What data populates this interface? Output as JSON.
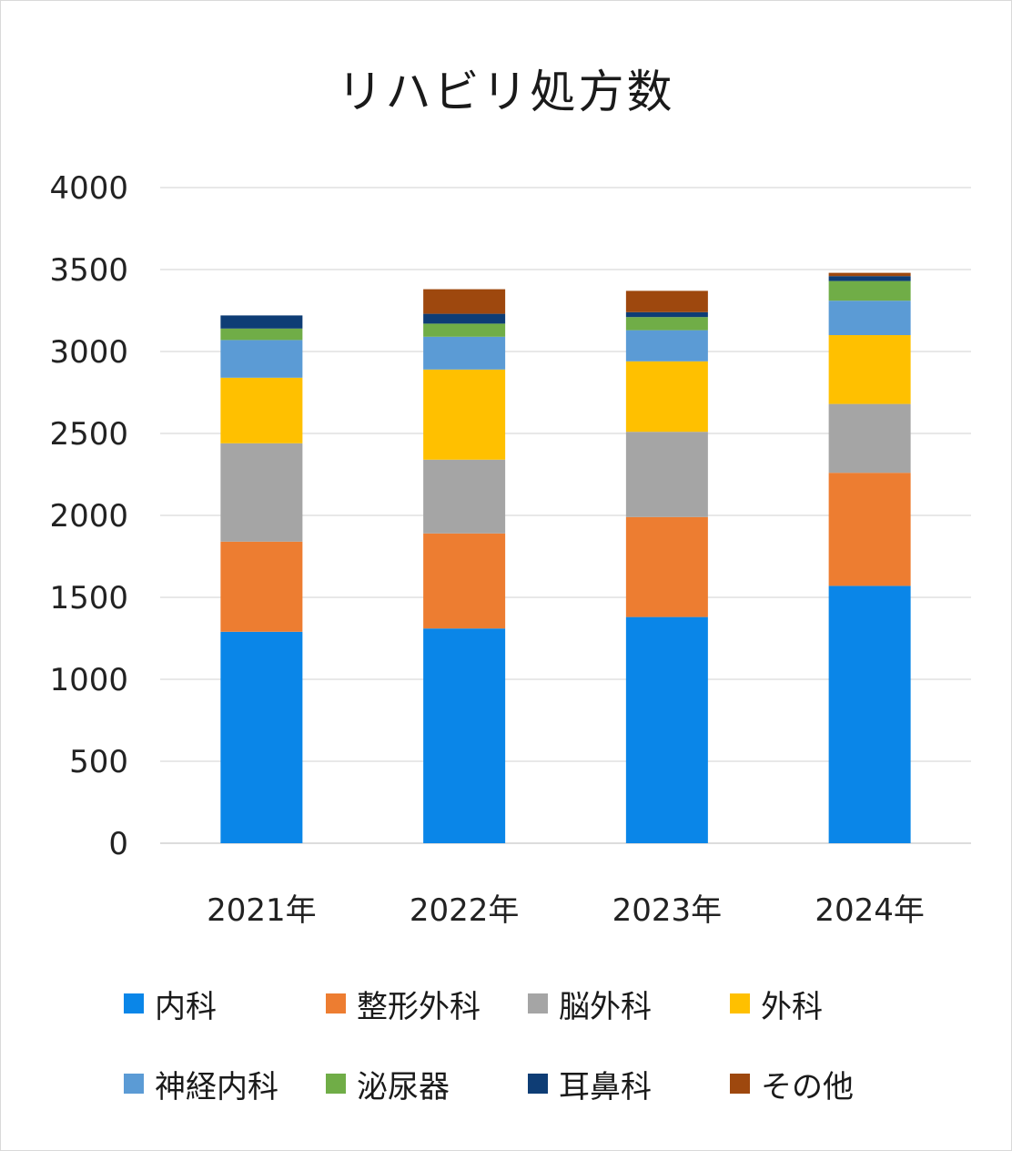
{
  "chart_data": {
    "type": "bar",
    "stacked": true,
    "title": "リハビリ処方数",
    "categories": [
      "2021年",
      "2022年",
      "2023年",
      "2024年"
    ],
    "ylim": [
      0,
      4000
    ],
    "yticks": [
      0,
      500,
      1000,
      1500,
      2000,
      2500,
      3000,
      3500,
      4000
    ],
    "grid": true,
    "legend_position": "bottom",
    "series": [
      {
        "name": "内科",
        "color": "#0a86e8",
        "values": [
          1290,
          1310,
          1380,
          1570
        ]
      },
      {
        "name": "整形外科",
        "color": "#ed7d31",
        "values": [
          550,
          580,
          610,
          690
        ]
      },
      {
        "name": "脳外科",
        "color": "#a5a5a5",
        "values": [
          600,
          450,
          520,
          420
        ]
      },
      {
        "name": "外科",
        "color": "#ffc000",
        "values": [
          400,
          550,
          430,
          420
        ]
      },
      {
        "name": "神経内科",
        "color": "#5b9bd5",
        "values": [
          230,
          200,
          190,
          210
        ]
      },
      {
        "name": "泌尿器",
        "color": "#70ad47",
        "values": [
          70,
          80,
          80,
          120
        ]
      },
      {
        "name": "耳鼻科",
        "color": "#0e3d75",
        "values": [
          80,
          60,
          30,
          30
        ]
      },
      {
        "name": "その他",
        "color": "#9e480e",
        "values": [
          0,
          150,
          130,
          20
        ]
      }
    ]
  }
}
